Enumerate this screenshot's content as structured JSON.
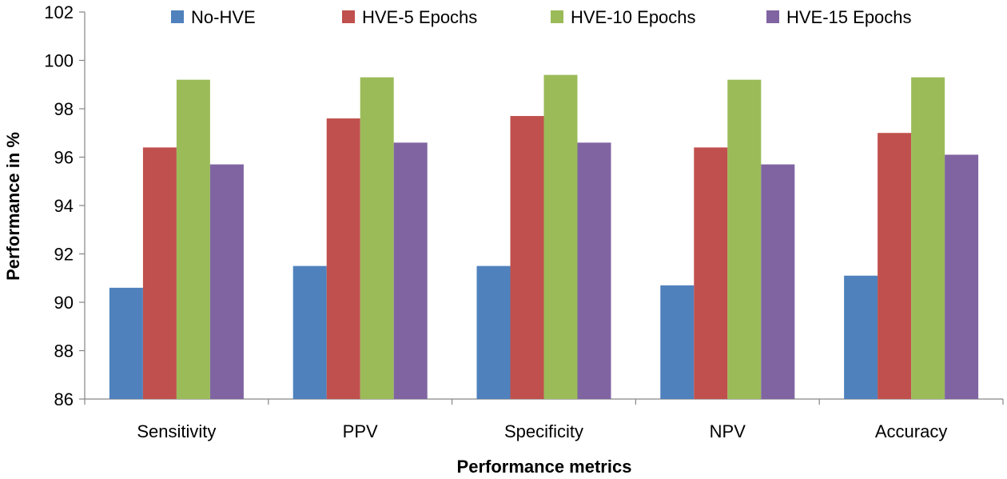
{
  "chart_data": {
    "type": "bar",
    "title": "",
    "xlabel": "Performance metrics",
    "ylabel": "Performance in %",
    "ylim": [
      86,
      102
    ],
    "yticks": [
      86,
      88,
      90,
      92,
      94,
      96,
      98,
      100,
      102
    ],
    "ytick_labels": [
      "86",
      "88",
      "90",
      "92",
      "94",
      "96",
      "98",
      "100",
      "102"
    ],
    "categories": [
      "Sensitivity",
      "PPV",
      "Specificity",
      "NPV",
      "Accuracy"
    ],
    "legend_position": "top",
    "grid": false,
    "series": [
      {
        "name": "No-HVE",
        "color": "#4f81bd",
        "values": [
          90.6,
          91.5,
          91.5,
          90.7,
          91.1
        ]
      },
      {
        "name": "HVE-5 Epochs",
        "color": "#c0504d",
        "values": [
          96.4,
          97.6,
          97.7,
          96.4,
          97.0
        ]
      },
      {
        "name": "HVE-10 Epochs",
        "color": "#9bbb59",
        "values": [
          99.2,
          99.3,
          99.4,
          99.2,
          99.3
        ]
      },
      {
        "name": "HVE-15 Epochs",
        "color": "#8064a2",
        "values": [
          95.7,
          96.6,
          96.6,
          95.7,
          96.1
        ]
      }
    ]
  }
}
